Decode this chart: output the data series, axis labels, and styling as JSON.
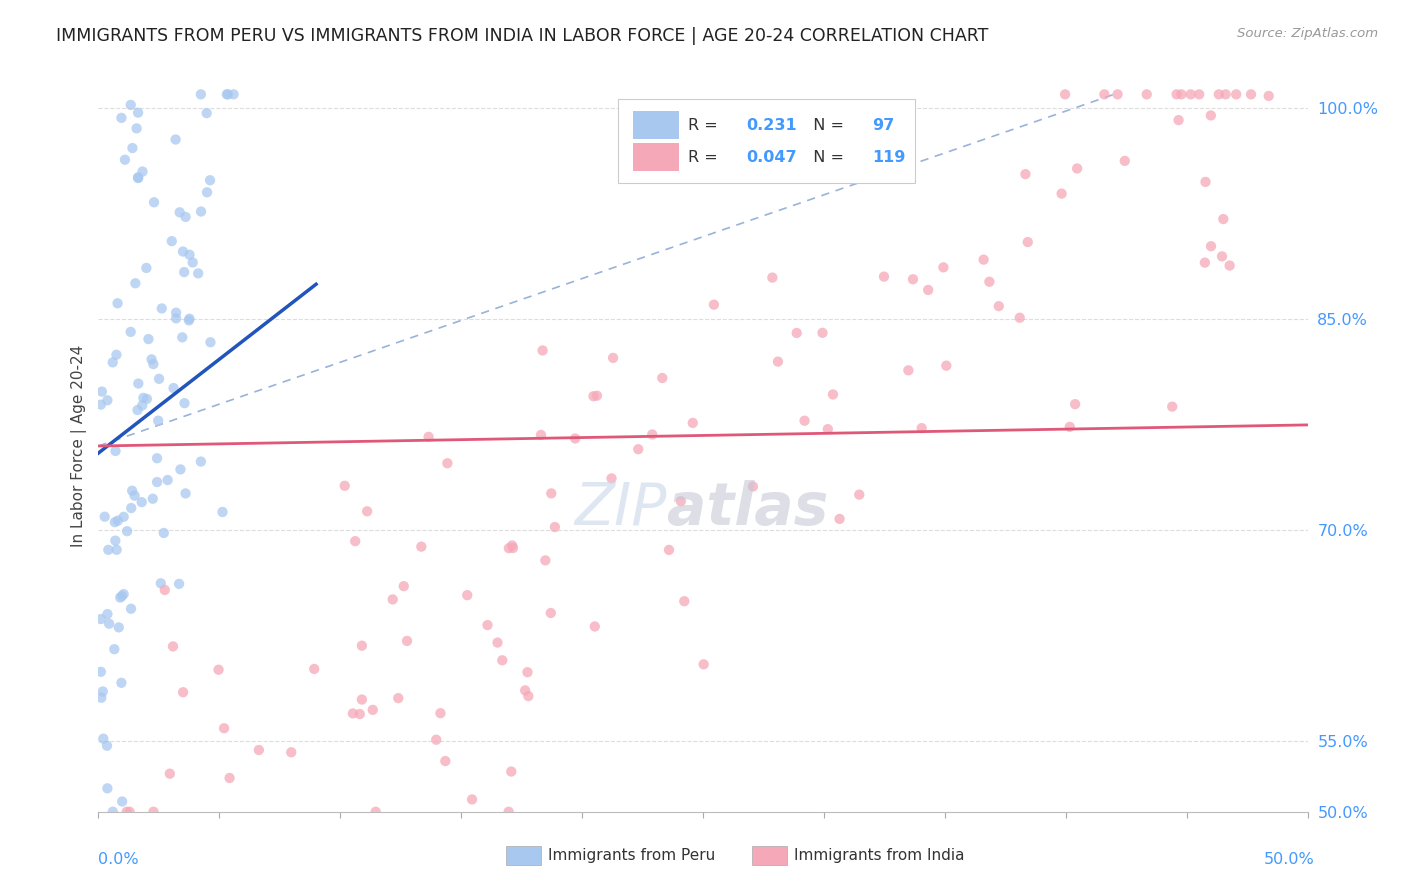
{
  "title": "IMMIGRANTS FROM PERU VS IMMIGRANTS FROM INDIA IN LABOR FORCE | AGE 20-24 CORRELATION CHART",
  "source": "Source: ZipAtlas.com",
  "ylabel": "In Labor Force | Age 20-24",
  "ylabel_ticks": [
    "100.0%",
    "85.0%",
    "70.0%",
    "55.0%",
    "50.0%"
  ],
  "ylabel_tick_vals": [
    1.0,
    0.85,
    0.7,
    0.55,
    0.5
  ],
  "xmin": 0.0,
  "xmax": 0.5,
  "ymin": 0.5,
  "ymax": 1.02,
  "legend_r_peru": "0.231",
  "legend_n_peru": "97",
  "legend_r_india": "0.047",
  "legend_n_india": "119",
  "color_peru": "#A8C8F0",
  "color_india": "#F5A8B8",
  "color_peru_line": "#2255BB",
  "color_india_line": "#E05878",
  "color_dashed": "#7799CC",
  "axis_label_color": "#4499FF",
  "grid_color": "#DDDDDD",
  "title_fontsize": 12.5,
  "watermark_color": "#C8D8E8",
  "watermark_color2": "#C8C8D8"
}
